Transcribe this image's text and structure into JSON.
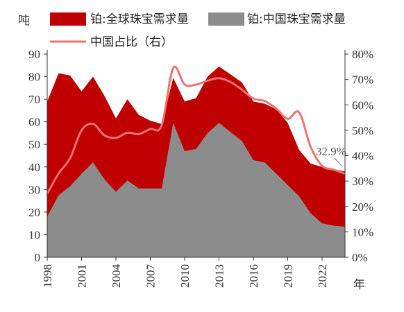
{
  "chart_data": {
    "type": "area",
    "left_unit": "吨",
    "x_unit": "年",
    "x": [
      1998,
      1999,
      2000,
      2001,
      2002,
      2003,
      2004,
      2005,
      2006,
      2007,
      2008,
      2009,
      2010,
      2011,
      2012,
      2013,
      2014,
      2015,
      2016,
      2017,
      2018,
      2019,
      2020,
      2021,
      2022,
      2023,
      2024
    ],
    "x_ticks": [
      "1998",
      "2001",
      "2004",
      "2007",
      "2010",
      "2013",
      "2016",
      "2019",
      "2022"
    ],
    "x_tick_values": [
      1998,
      2001,
      2004,
      2007,
      2010,
      2013,
      2016,
      2019,
      2022
    ],
    "ylim_left": [
      0,
      90
    ],
    "yticks_left": [
      "0",
      "10",
      "20",
      "30",
      "40",
      "50",
      "60",
      "70",
      "80",
      "90"
    ],
    "ylim_right": [
      0,
      0.8
    ],
    "yticks_right": [
      "0%",
      "10%",
      "20%",
      "30%",
      "40%",
      "50%",
      "60%",
      "70%",
      "80%"
    ],
    "series": [
      {
        "name": "铂:全球珠宝需求量",
        "axis": "left",
        "kind": "area",
        "color": "#c00000",
        "values": [
          69,
          81.5,
          80.5,
          73.5,
          80,
          71.5,
          61.5,
          70,
          63,
          60.5,
          59,
          79.5,
          69,
          70.5,
          80,
          84.5,
          81,
          77.5,
          69,
          68,
          65.5,
          59.5,
          47.5,
          41.5,
          40,
          39,
          38
        ]
      },
      {
        "name": "铂:中国珠宝需求量",
        "axis": "left",
        "kind": "area",
        "color": "#8c8c8c",
        "values": [
          18,
          27.5,
          31.5,
          37,
          42,
          34.5,
          29,
          34,
          30.5,
          30.5,
          30.5,
          59.5,
          47,
          48,
          55,
          59.5,
          55.5,
          51.5,
          43,
          42,
          37,
          32,
          27,
          19.5,
          15,
          14,
          13.5
        ]
      },
      {
        "name": "中国占比（右）",
        "axis": "right",
        "kind": "line",
        "color": "#f07070",
        "values": [
          0.25,
          0.33,
          0.39,
          0.5,
          0.525,
          0.48,
          0.47,
          0.49,
          0.485,
          0.505,
          0.52,
          0.745,
          0.68,
          0.68,
          0.695,
          0.705,
          0.69,
          0.66,
          0.625,
          0.615,
          0.585,
          0.545,
          0.57,
          0.435,
          0.36,
          0.345,
          0.329
        ]
      }
    ],
    "annotation": {
      "text": "32.9%"
    }
  }
}
